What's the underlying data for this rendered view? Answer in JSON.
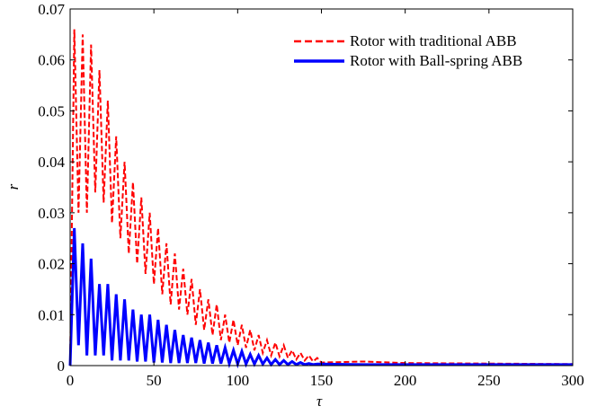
{
  "chart_data": {
    "type": "line",
    "xlabel": "τ",
    "ylabel": "r",
    "x": [
      0,
      2.5,
      5,
      7.5,
      10,
      12.5,
      15,
      17.5,
      20,
      22.5,
      25,
      27.5,
      30,
      32.5,
      35,
      37.5,
      40,
      42.5,
      45,
      47.5,
      50,
      52.5,
      55,
      57.5,
      60,
      62.5,
      65,
      67.5,
      70,
      72.5,
      75,
      77.5,
      80,
      82.5,
      85,
      87.5,
      90,
      92.5,
      95,
      97.5,
      100,
      102.5,
      105,
      107.5,
      110,
      112.5,
      115,
      117.5,
      120,
      122.5,
      125,
      127.5,
      130,
      132.5,
      135,
      137.5,
      140,
      142.5,
      145,
      147.5,
      150,
      175,
      200,
      250,
      300
    ],
    "series": [
      {
        "name": "Rotor with traditional ABB",
        "color": "#ff0000",
        "dash": true,
        "values": [
          0,
          0.066,
          0.03,
          0.065,
          0.03,
          0.063,
          0.034,
          0.058,
          0.032,
          0.052,
          0.028,
          0.045,
          0.025,
          0.04,
          0.022,
          0.036,
          0.02,
          0.033,
          0.018,
          0.03,
          0.016,
          0.027,
          0.014,
          0.024,
          0.012,
          0.022,
          0.011,
          0.019,
          0.01,
          0.017,
          0.008,
          0.015,
          0.007,
          0.013,
          0.006,
          0.012,
          0.005,
          0.01,
          0.0045,
          0.009,
          0.004,
          0.008,
          0.0035,
          0.007,
          0.003,
          0.006,
          0.0025,
          0.005,
          0.002,
          0.0045,
          0.0018,
          0.004,
          0.0015,
          0.003,
          0.0012,
          0.0025,
          0.001,
          0.002,
          0.0008,
          0.0015,
          0.0006,
          0.0008,
          0.0005,
          0.0004,
          0.0003
        ]
      },
      {
        "name": "Rotor with Ball-spring ABB",
        "color": "#0000ff",
        "dash": false,
        "values": [
          0,
          0.027,
          0.004,
          0.024,
          0.002,
          0.021,
          0.002,
          0.016,
          0.002,
          0.016,
          0.001,
          0.014,
          0.001,
          0.013,
          0.001,
          0.011,
          0.0008,
          0.01,
          0.0008,
          0.01,
          0.0006,
          0.009,
          0.0006,
          0.008,
          0.0005,
          0.007,
          0.0005,
          0.006,
          0.0005,
          0.0055,
          0.0005,
          0.005,
          0.0004,
          0.0045,
          0.0004,
          0.004,
          0.0004,
          0.0035,
          0.0004,
          0.003,
          0.0003,
          0.0028,
          0.0003,
          0.0022,
          0.0003,
          0.002,
          0.0003,
          0.0015,
          0.0002,
          0.0012,
          0.0002,
          0.001,
          0.0002,
          0.0008,
          0.0002,
          0.0006,
          0.0002,
          0.0004,
          0.0002,
          0.0003,
          0.0003,
          0.0002,
          0.0002,
          0.0002,
          0.0002
        ]
      }
    ],
    "xlim": [
      0,
      300
    ],
    "xticks": [
      0,
      50,
      100,
      150,
      200,
      250,
      300
    ],
    "ylim": [
      0,
      0.07
    ],
    "yticks": [
      0,
      0.01,
      0.02,
      0.03,
      0.04,
      0.05,
      0.06,
      0.07
    ],
    "legend": "upper right"
  }
}
